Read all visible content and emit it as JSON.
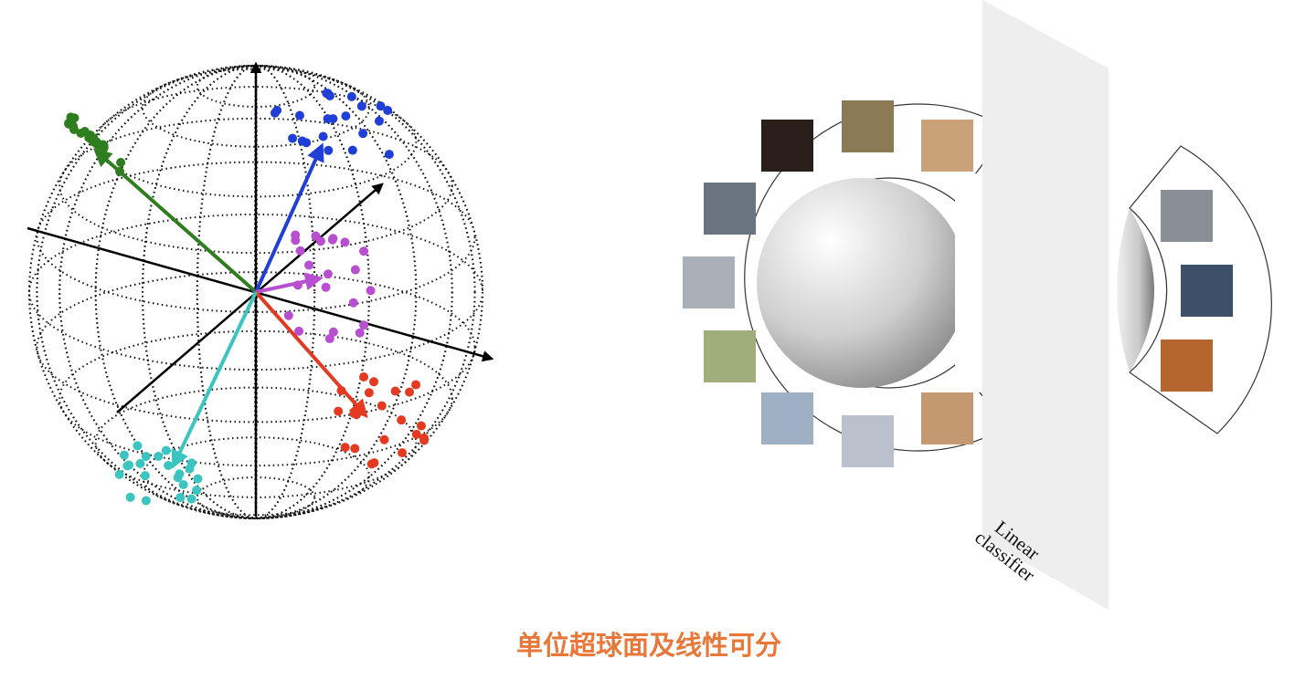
{
  "caption": "单位超球面及线性可分",
  "classifier_label_line1": "Linear",
  "classifier_label_line2": "classifier",
  "clusters": [
    {
      "color": "#2e7d1f",
      "name": "green"
    },
    {
      "color": "#1f3fd6",
      "name": "blue"
    },
    {
      "color": "#b84fd0",
      "name": "magenta"
    },
    {
      "color": "#e53a22",
      "name": "red"
    },
    {
      "color": "#3cc4c0",
      "name": "cyan"
    }
  ],
  "image_icons": [
    "dog-image",
    "dog-image",
    "dog-image",
    "car-image",
    "car-image",
    "car-image",
    "airplane-image",
    "airplane-image",
    "airplane-image",
    "cat-image",
    "cat-image",
    "cat-image"
  ],
  "colors": {
    "caption": "#e8783a",
    "plane": "#eeeeee"
  }
}
